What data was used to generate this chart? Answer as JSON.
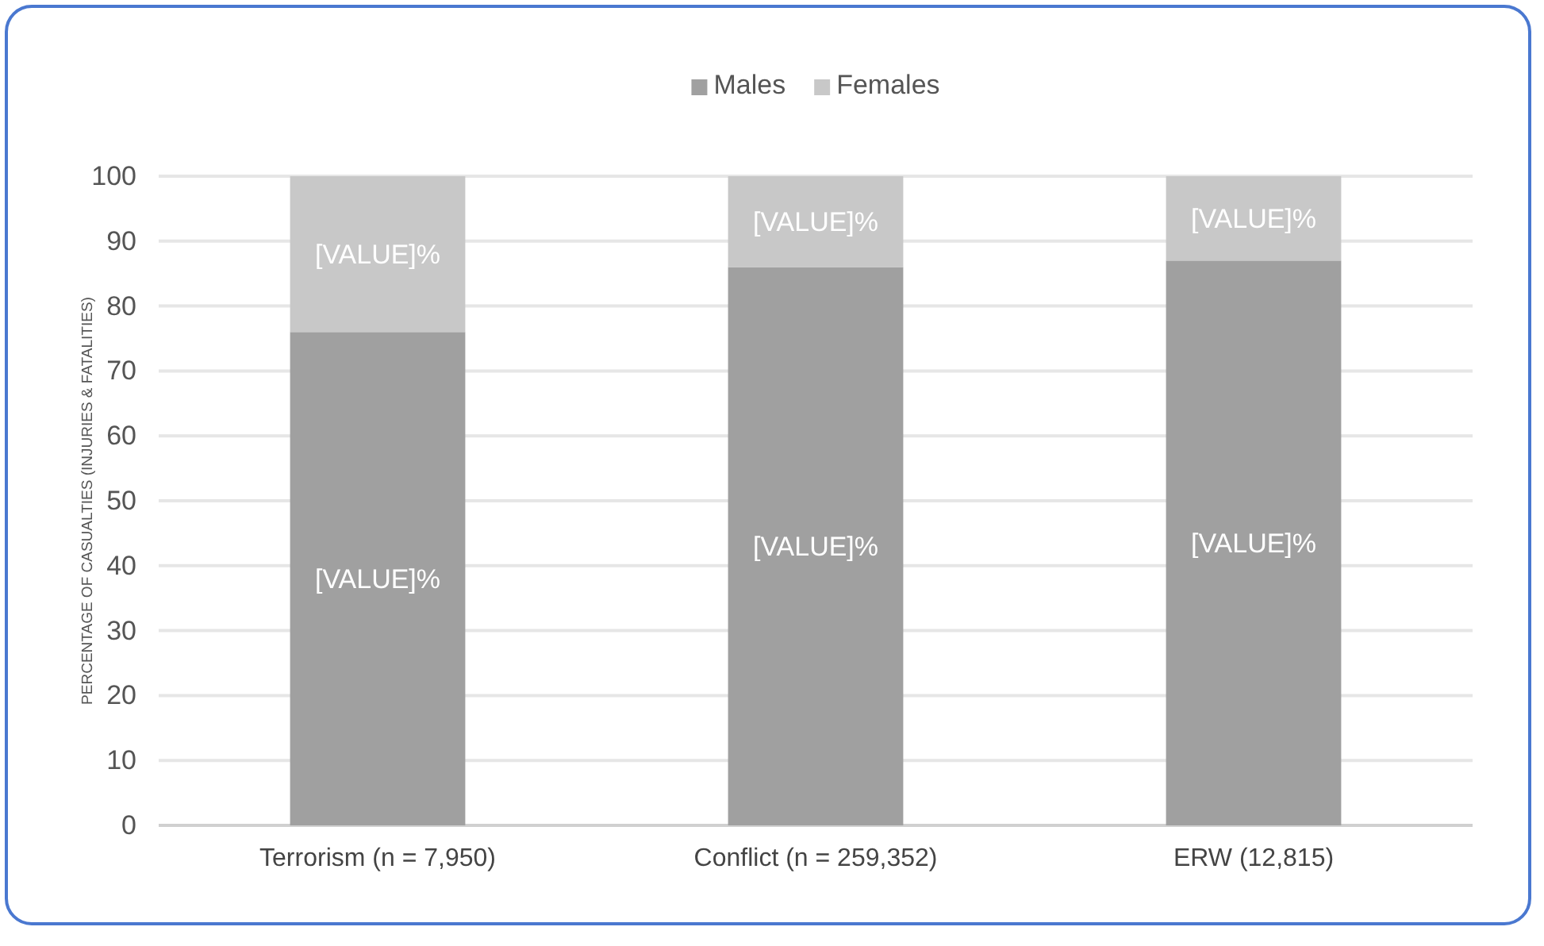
{
  "chart_data": {
    "type": "bar",
    "stacked": true,
    "ylabel": "PERCENTAGE OF CASUALTIES (INJURIES & FATALITIES)",
    "categories": [
      "Terrorism (n = 7,950)",
      "Conflict (n = 259,352)",
      "ERW (12,815)"
    ],
    "series": [
      {
        "name": "Males",
        "color": "#a0a0a0",
        "values": [
          76,
          86,
          87
        ],
        "value_labels": [
          "[VALUE]%",
          "[VALUE]%",
          "[VALUE]%"
        ]
      },
      {
        "name": "Females",
        "color": "#c8c8c8",
        "values": [
          24,
          14,
          13
        ],
        "value_labels": [
          "[VALUE]%",
          "[VALUE]%",
          "[VALUE]%"
        ]
      }
    ],
    "ylim": [
      0,
      100
    ],
    "yticks": [
      0,
      10,
      20,
      30,
      40,
      50,
      60,
      70,
      80,
      90,
      100
    ],
    "grid": "y",
    "legend": "top"
  }
}
